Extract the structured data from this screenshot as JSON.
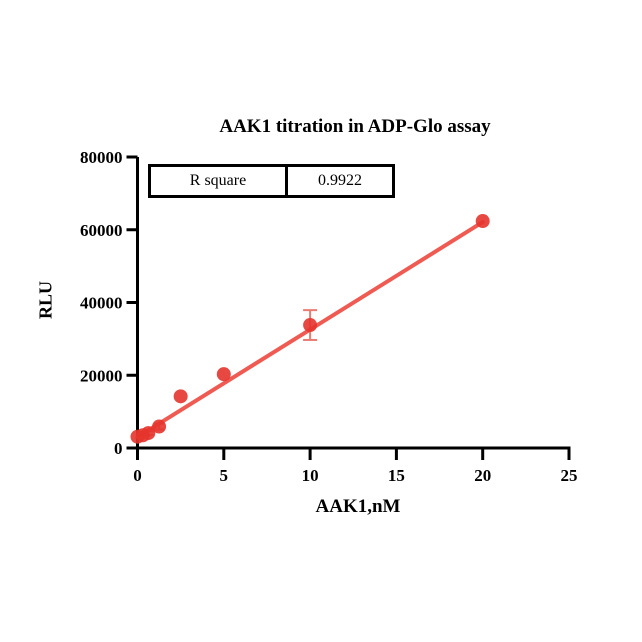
{
  "title": "AAK1 titration in ADP-Glo assay",
  "stats_table": {
    "rows": [
      {
        "label": "R square",
        "value": "0.9922"
      }
    ]
  },
  "chart_data": {
    "type": "scatter",
    "title": "AAK1 titration in ADP-Glo assay",
    "xlabel": "AAK1,nM",
    "ylabel": "RLU",
    "xlim": [
      0,
      25
    ],
    "ylim": [
      0,
      80000
    ],
    "x_ticks": [
      0,
      5,
      10,
      15,
      20,
      25
    ],
    "y_ticks": [
      0,
      20000,
      40000,
      60000,
      80000
    ],
    "grid": false,
    "legend_position": "none",
    "series": [
      {
        "name": "AAK1 titration",
        "points": [
          {
            "x": 0,
            "y": 3100,
            "err": 0,
            "cap": 0
          },
          {
            "x": 0.3125,
            "y": 3500,
            "err": 0,
            "cap": 0
          },
          {
            "x": 0.625,
            "y": 4100,
            "err": 500,
            "cap": 5
          },
          {
            "x": 1.25,
            "y": 5900,
            "err": 800,
            "cap": 5
          },
          {
            "x": 2.5,
            "y": 14200,
            "err": 0,
            "cap": 0
          },
          {
            "x": 5,
            "y": 20300,
            "err": 0,
            "cap": 0
          },
          {
            "x": 10,
            "y": 33800,
            "err": 4100,
            "cap": 7
          },
          {
            "x": 20,
            "y": 62400,
            "err": 0,
            "cap": 0
          }
        ]
      }
    ],
    "fit_line": {
      "x": [
        0,
        20
      ],
      "y": [
        3000,
        62100
      ]
    },
    "r_square": 0.9922,
    "annotations": [
      "R square = 0.9922"
    ],
    "colors": {
      "point": "#e4342c",
      "line": "#ef5b52",
      "error": "#ea7b73",
      "axis": "#000000"
    }
  }
}
